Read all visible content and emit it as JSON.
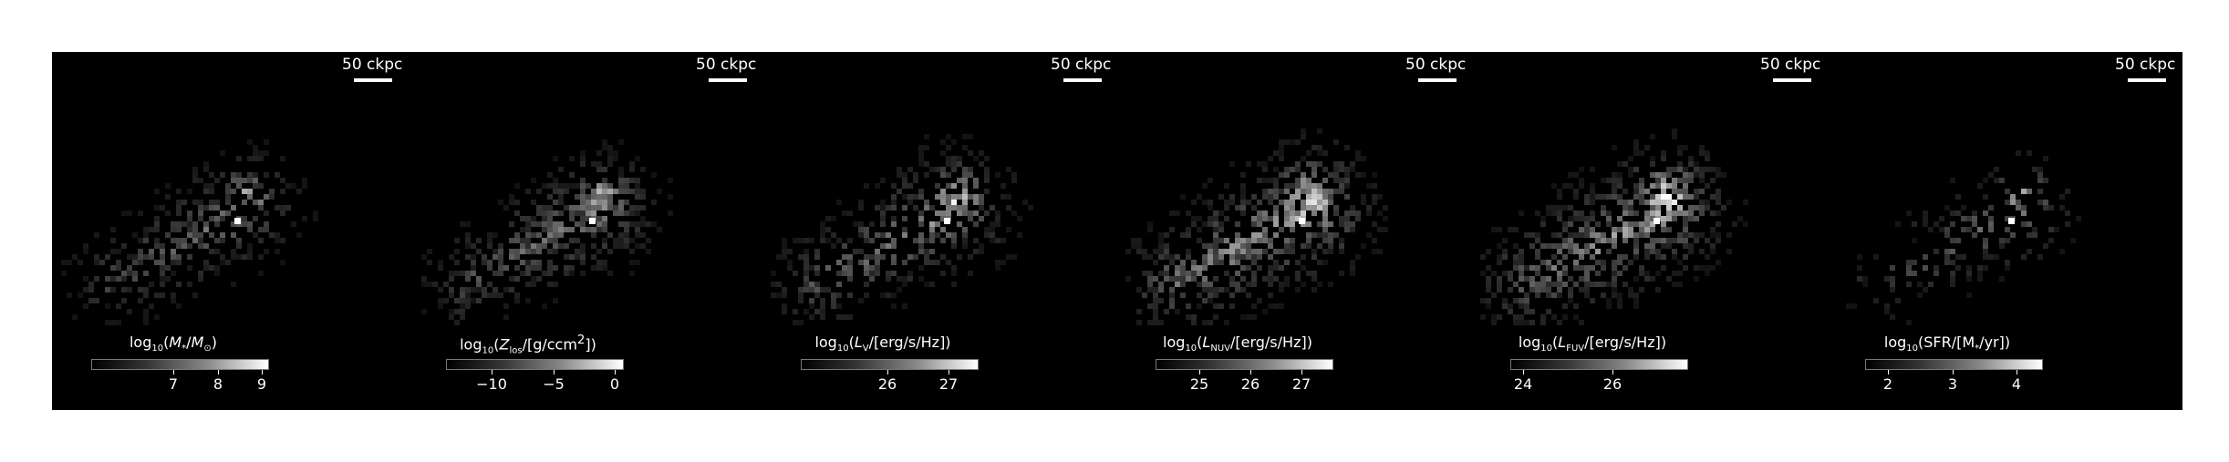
{
  "scalebar_label": "50 ckpc",
  "panels": [
    {
      "id": "stellar-mass",
      "colorbar_label": "log<sub>10</sub>(<i>M</i><sub>*</sub>/<i>M</i><sub>⊙</sub>)",
      "ticks": [
        "7",
        "8",
        "9"
      ],
      "density": 0.55,
      "brightness": 0.75
    },
    {
      "id": "metallicity",
      "colorbar_label": "log<sub>10</sub>(<i>Z</i><sub>los</sub>/[g/ccm<sup>2</sup>])",
      "ticks": [
        "−10",
        "−5",
        "0"
      ],
      "density": 0.85,
      "brightness": 0.8
    },
    {
      "id": "v-band",
      "colorbar_label": "log<sub>10</sub>(<i>L</i><sub>V</sub>/[erg/s/Hz])",
      "ticks": [
        "26",
        "27"
      ],
      "density": 0.7,
      "brightness": 0.95
    },
    {
      "id": "nuv",
      "colorbar_label": "log<sub>10</sub>(<i>L</i><sub>NUV</sub>/[erg/s/Hz])",
      "ticks": [
        "25",
        "26",
        "27"
      ],
      "density": 0.85,
      "brightness": 1.15
    },
    {
      "id": "fuv",
      "colorbar_label": "log<sub>10</sub>(<i>L</i><sub>FUV</sub>/[erg/s/Hz])",
      "ticks": [
        "24",
        "26"
      ],
      "density": 0.85,
      "brightness": 1.15
    },
    {
      "id": "sfr",
      "colorbar_label": "log<sub>10</sub>(SFR/[M<sub>*</sub>/yr])",
      "ticks": [
        "2",
        "3",
        "4"
      ],
      "density": 0.35,
      "brightness": 0.7
    }
  ]
}
